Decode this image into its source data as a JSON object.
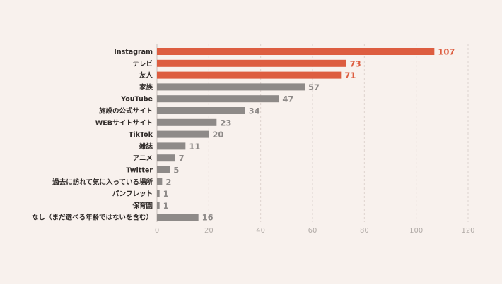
{
  "chart_data": {
    "type": "bar",
    "orientation": "horizontal",
    "categories": [
      "Instagram",
      "テレビ",
      "友人",
      "家族",
      "YouTube",
      "施設の公式サイト",
      "WEBサイトサイト",
      "TikTok",
      "雑誌",
      "アニメ",
      "Twitter",
      "過去に訪れて気に入っている場所",
      "パンフレット",
      "保育園",
      "なし（まだ選べる年齢ではないを含む）"
    ],
    "values": [
      107,
      73,
      71,
      57,
      47,
      34,
      23,
      20,
      11,
      7,
      5,
      2,
      1,
      1,
      16
    ],
    "highlighted": [
      true,
      true,
      true,
      false,
      false,
      false,
      false,
      false,
      false,
      false,
      false,
      false,
      false,
      false,
      false
    ],
    "xlim": [
      0,
      120
    ],
    "xticks": [
      "0",
      "20",
      "40",
      "60",
      "80",
      "100",
      "120"
    ],
    "grid": true,
    "title": "",
    "xlabel": "",
    "ylabel": "",
    "colors": {
      "background": "#f8f1ed",
      "highlight_bar": "#dd5d40",
      "default_bar": "#8e8a88",
      "highlight_label": "#dd5d40",
      "default_label": "#8e8a88",
      "category_label": "#2f2a28",
      "tick_label": "#b1aba7",
      "grid": "#ddd3ce",
      "axis": "#c9bfba"
    }
  }
}
